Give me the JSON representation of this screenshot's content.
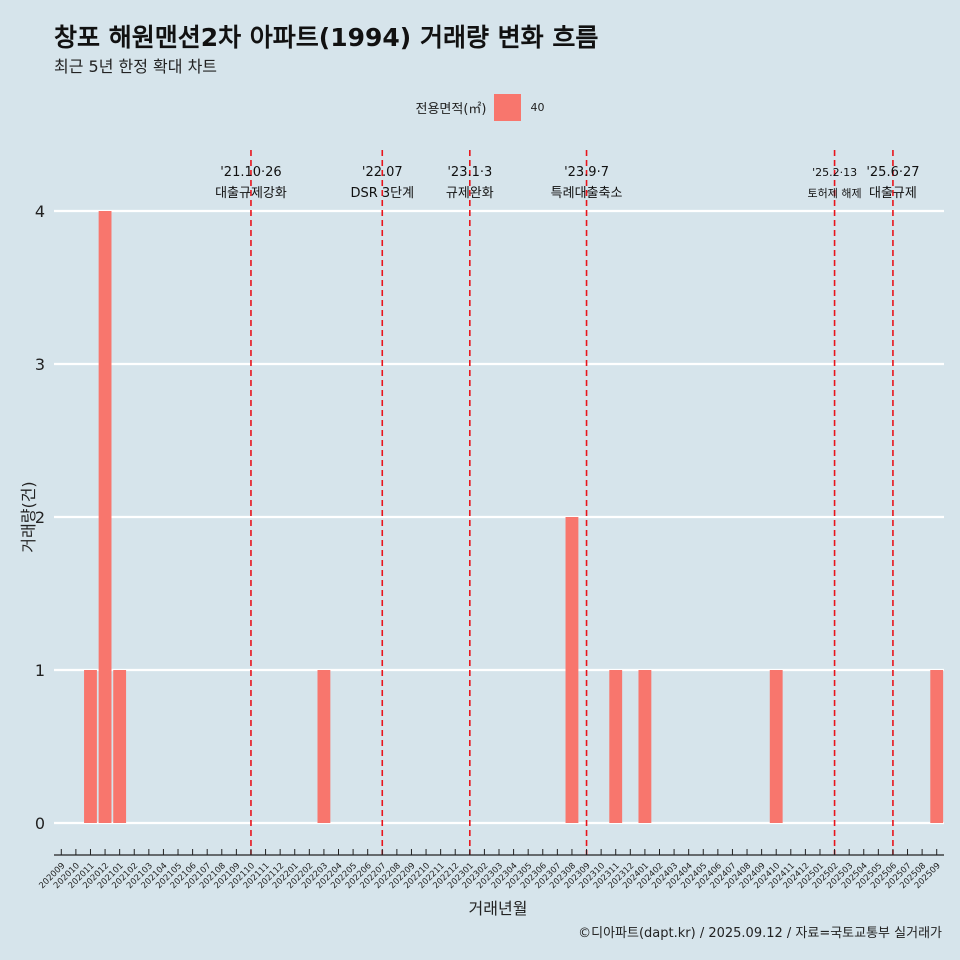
{
  "title": "창포 해원맨션2차 아파트(1994) 거래량 변화 흐름",
  "subtitle": "최근 5년 한정 확대 차트",
  "legend": {
    "title": "전용면적(㎡)",
    "label": "40"
  },
  "caption": "©디아파트(dapt.kr) / 2025.09.12 / 자료=국토교통부 실거래가",
  "colors": {
    "background": "#d6e4eb",
    "bar": "#f8766d",
    "vline": "#e8141b",
    "grid": "#ffffff"
  },
  "chart_data": {
    "type": "bar",
    "xlabel": "거래년월",
    "ylabel": "거래량(건)",
    "ylim": [
      0,
      4
    ],
    "yticks": [
      0,
      1,
      2,
      3,
      4
    ],
    "grid": true,
    "legend_position": "top",
    "categories": [
      "202009",
      "202010",
      "202011",
      "202012",
      "202101",
      "202102",
      "202103",
      "202104",
      "202105",
      "202106",
      "202107",
      "202108",
      "202109",
      "202110",
      "202111",
      "202112",
      "202201",
      "202202",
      "202203",
      "202204",
      "202205",
      "202206",
      "202207",
      "202208",
      "202209",
      "202210",
      "202211",
      "202212",
      "202301",
      "202302",
      "202303",
      "202304",
      "202305",
      "202306",
      "202307",
      "202308",
      "202309",
      "202310",
      "202311",
      "202312",
      "202401",
      "202402",
      "202403",
      "202404",
      "202405",
      "202406",
      "202407",
      "202408",
      "202409",
      "202410",
      "202411",
      "202412",
      "202501",
      "202502",
      "202503",
      "202504",
      "202505",
      "202506",
      "202507",
      "202508",
      "202509"
    ],
    "series": [
      {
        "name": "40",
        "values": [
          0,
          0,
          1,
          4,
          1,
          0,
          0,
          0,
          0,
          0,
          0,
          0,
          0,
          0,
          0,
          0,
          0,
          0,
          1,
          0,
          0,
          0,
          0,
          0,
          0,
          0,
          0,
          0,
          0,
          0,
          0,
          0,
          0,
          0,
          0,
          2,
          0,
          0,
          1,
          0,
          1,
          0,
          0,
          0,
          0,
          0,
          0,
          0,
          0,
          1,
          0,
          0,
          0,
          0,
          0,
          0,
          0,
          0,
          0,
          0,
          1
        ]
      }
    ],
    "annotations": [
      {
        "date": "202110",
        "line1": "'21.10·26",
        "line2": "대출규제강화"
      },
      {
        "date": "202207",
        "line1": "'22.07",
        "line2": "DSR 3단계"
      },
      {
        "date": "202301",
        "line1": "'23.1·3",
        "line2": "규제완화"
      },
      {
        "date": "202309",
        "line1": "'23.9·7",
        "line2": "특례대출축소"
      },
      {
        "date": "202502",
        "line1": "'25.2·13",
        "line2": "토허제 해제"
      },
      {
        "date": "202506",
        "line1": "'25.6·27",
        "line2": "대출규제"
      }
    ]
  }
}
